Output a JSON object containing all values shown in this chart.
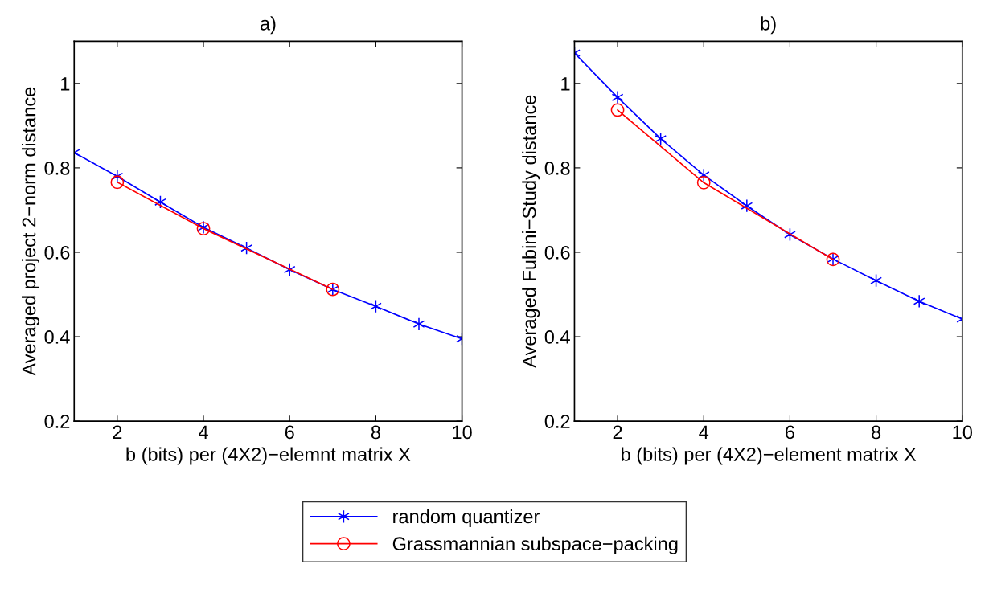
{
  "chart_data": [
    {
      "type": "line",
      "title": "a)",
      "xlabel": "b (bits) per (4X2)−elemnt matrix X",
      "ylabel": "Averaged project 2−norm distance",
      "xlim": [
        1,
        10
      ],
      "xticks": [
        2,
        4,
        6,
        8,
        10
      ],
      "ylim": [
        0.2,
        1.1
      ],
      "yticks": [
        0.2,
        0.4,
        0.6,
        0.8,
        {
          "value": 1,
          "label": "1"
        }
      ],
      "grid": false,
      "legend": "bottom",
      "series": [
        {
          "name": "random quantizer",
          "color": "#0000ff",
          "marker": "cross",
          "x": [
            1,
            2,
            3,
            4,
            5,
            6,
            7,
            8,
            9,
            10
          ],
          "values": [
            0.836,
            0.78,
            0.719,
            0.659,
            0.61,
            0.559,
            0.512,
            0.472,
            0.43,
            0.395
          ]
        },
        {
          "name": "Grassmannian subspace−packing",
          "color": "#ff0000",
          "marker": "circle",
          "x": [
            2,
            4,
            7
          ],
          "values": [
            0.766,
            0.656,
            0.512
          ]
        }
      ]
    },
    {
      "type": "line",
      "title": "b)",
      "xlabel": "b (bits) per (4X2)−element matrix X",
      "ylabel": "Averaged Fubini−Study distance",
      "xlim": [
        1,
        10
      ],
      "xticks": [
        2,
        4,
        6,
        8,
        10
      ],
      "ylim": [
        0.2,
        1.1
      ],
      "yticks": [
        0.2,
        0.4,
        0.6,
        0.8,
        {
          "value": 1,
          "label": "1"
        }
      ],
      "grid": false,
      "legend": "bottom",
      "series": [
        {
          "name": "random quantizer",
          "color": "#0000ff",
          "marker": "cross",
          "x": [
            1,
            2,
            3,
            4,
            5,
            6,
            7,
            8,
            9,
            10
          ],
          "values": [
            1.072,
            0.967,
            0.869,
            0.783,
            0.71,
            0.642,
            0.584,
            0.533,
            0.484,
            0.442
          ]
        },
        {
          "name": "Grassmannian subspace−packing",
          "color": "#ff0000",
          "marker": "circle",
          "x": [
            2,
            4,
            7
          ],
          "values": [
            0.937,
            0.765,
            0.583
          ]
        }
      ]
    }
  ]
}
